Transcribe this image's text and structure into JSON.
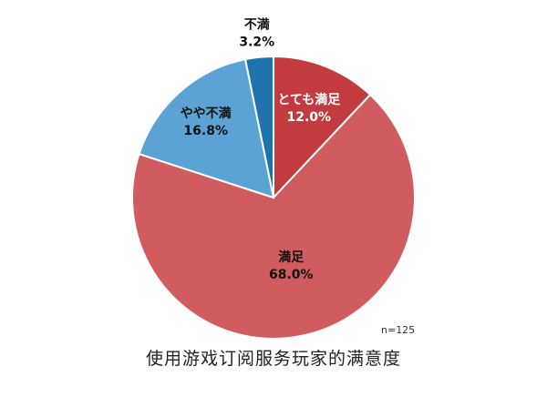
{
  "chart_data": {
    "type": "pie",
    "categories": [
      "とても満足",
      "満足",
      "やや不満",
      "不満"
    ],
    "values": [
      12.0,
      68.0,
      16.8,
      3.2
    ],
    "value_labels": [
      "12.0%",
      "68.0%",
      "16.8%",
      "3.2%"
    ],
    "colors": [
      "#c23b3e",
      "#d15c5f",
      "#5aa3d4",
      "#1f73ad"
    ],
    "label_colors": [
      "#ffffff",
      "#111111",
      "#111111",
      "#111111"
    ],
    "start": "12 o'clock, clockwise",
    "sample_size": "n=125",
    "caption": "使用游戏订阅服务玩家的满意度"
  }
}
